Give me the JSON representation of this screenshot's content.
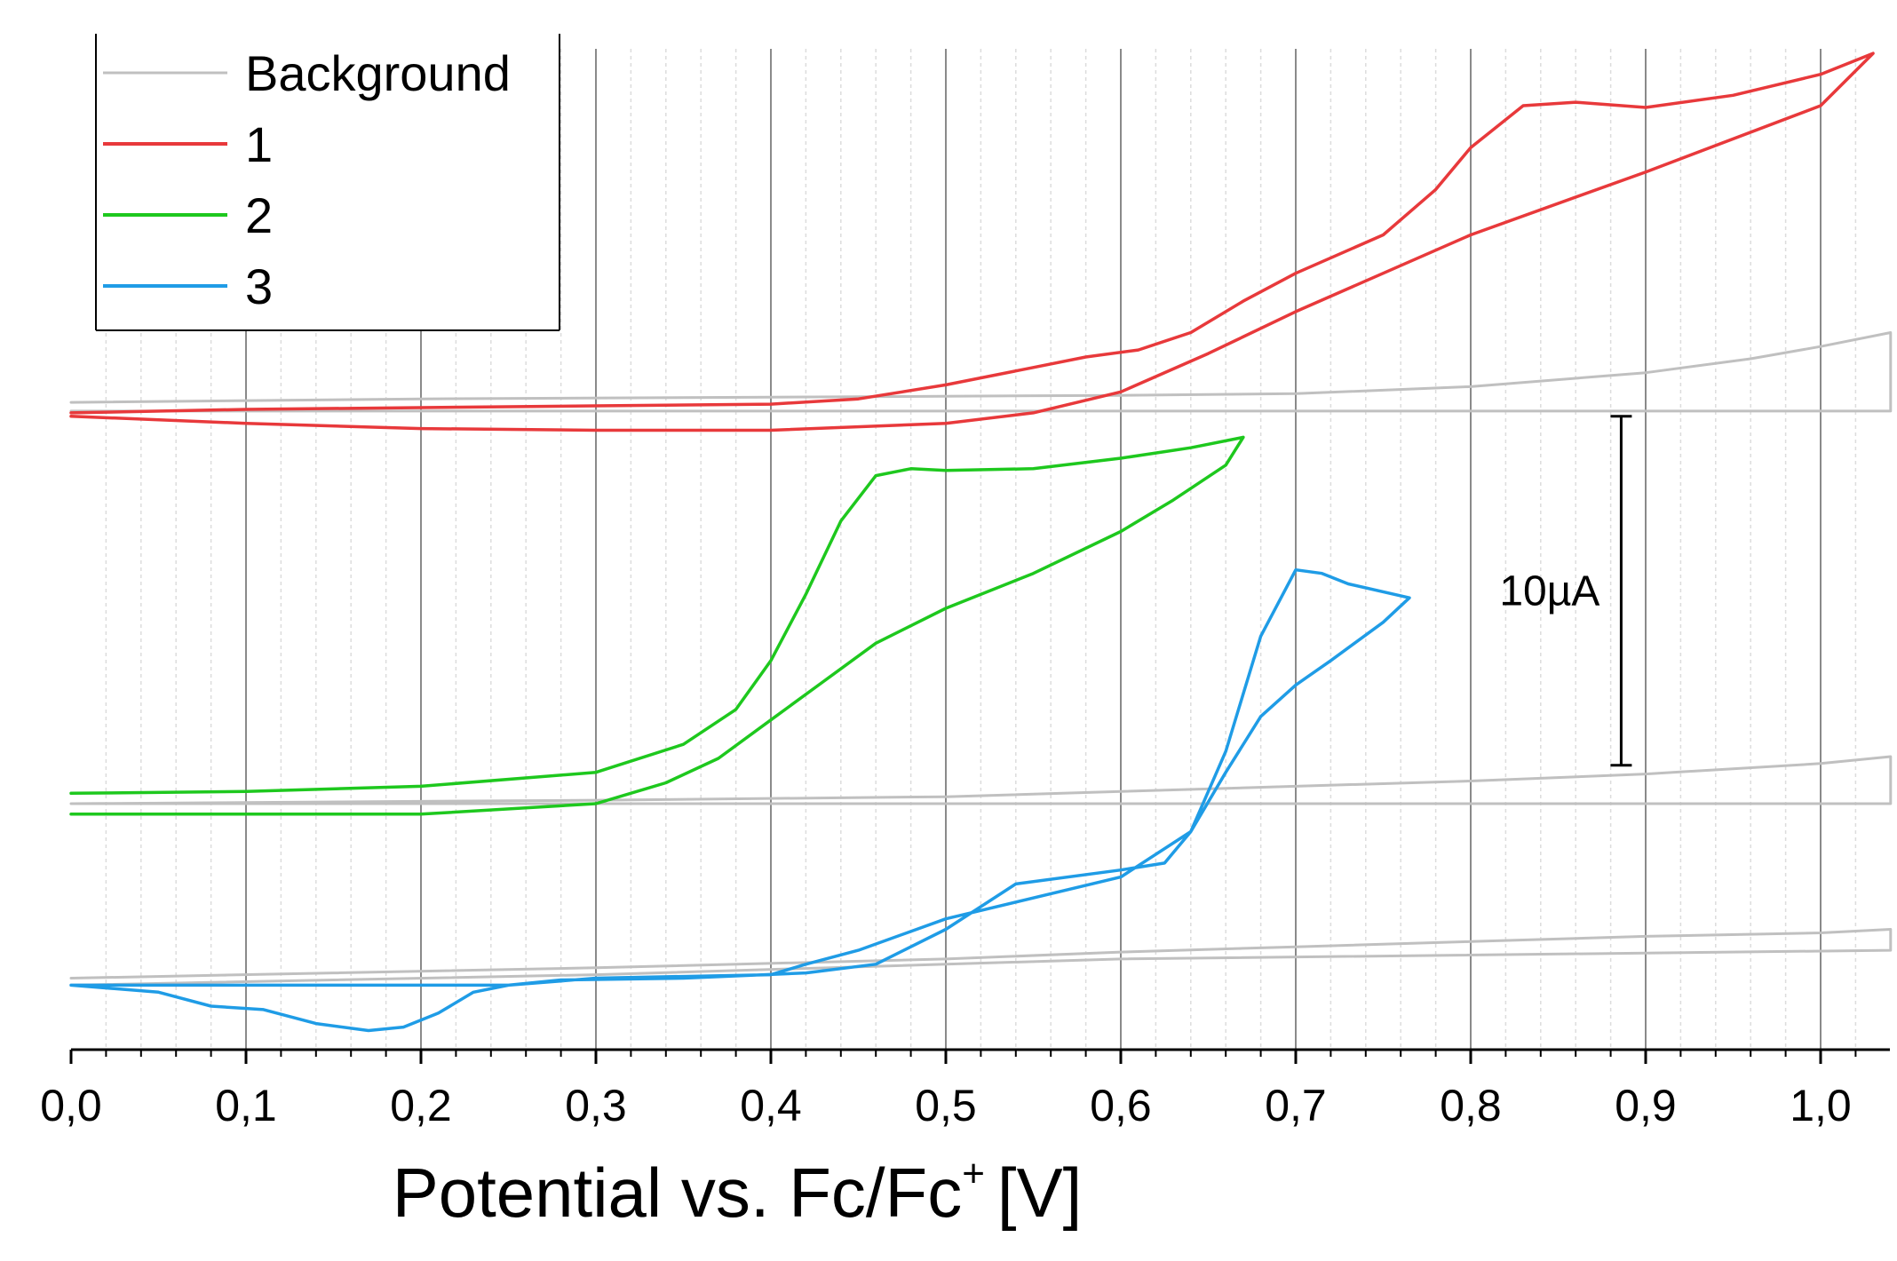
{
  "chart_data": {
    "type": "line",
    "title": "",
    "xlabel": "Potential vs. Fc/Fc",
    "xlabel_superscript": "+",
    "xlabel_unit": "[V]",
    "ylabel": "",
    "xlim": [
      0.0,
      1.04
    ],
    "ylim": [
      -2.0,
      29.0
    ],
    "x_ticks": [
      0.0,
      0.1,
      0.2,
      0.3,
      0.4,
      0.5,
      0.6,
      0.7,
      0.8,
      0.9,
      1.0
    ],
    "x_tick_labels": [
      "0,0",
      "0,1",
      "0,2",
      "0,3",
      "0,4",
      "0,5",
      "0,6",
      "0,7",
      "0,8",
      "0,9",
      "1,0"
    ],
    "grid": "vertical",
    "legend": {
      "position": "top-left",
      "entries": [
        {
          "label": "Background",
          "color": "#c0c0c0"
        },
        {
          "label": "1",
          "color": "#e8393b"
        },
        {
          "label": "2",
          "color": "#1ec81e"
        },
        {
          "label": "3",
          "color": "#1f9ce6"
        }
      ]
    },
    "scale_bar": {
      "label": "10µA",
      "value": 10,
      "x": 0.886,
      "y_from": 8.3,
      "y_to": 18.3
    },
    "series": [
      {
        "name": "Background",
        "role": "1",
        "color": "#c0c0c0",
        "x": [
          0.0,
          0.2,
          0.4,
          0.6,
          0.7,
          0.8,
          0.9,
          0.96,
          1.0,
          1.04,
          1.04,
          0.8,
          0.6,
          0.3,
          0.0
        ],
        "y": [
          18.7,
          18.8,
          18.85,
          18.9,
          18.95,
          19.15,
          19.55,
          19.95,
          20.3,
          20.7,
          18.45,
          18.45,
          18.45,
          18.45,
          18.45
        ]
      },
      {
        "name": "Background",
        "role": "2",
        "color": "#c0c0c0",
        "x": [
          0.0,
          0.3,
          0.5,
          0.6,
          0.7,
          0.8,
          0.9,
          1.0,
          1.04,
          1.04,
          0.6,
          0.3,
          0.0
        ],
        "y": [
          7.2,
          7.3,
          7.4,
          7.55,
          7.7,
          7.85,
          8.05,
          8.35,
          8.55,
          7.2,
          7.2,
          7.2,
          7.2
        ]
      },
      {
        "name": "Background",
        "role": "3",
        "color": "#c0c0c0",
        "x": [
          0.0,
          0.3,
          0.5,
          0.6,
          0.7,
          0.8,
          0.9,
          1.0,
          1.04,
          1.04,
          0.6,
          0.3,
          0.0
        ],
        "y": [
          2.2,
          2.5,
          2.75,
          2.95,
          3.1,
          3.25,
          3.4,
          3.5,
          3.6,
          3.0,
          2.75,
          2.3,
          2.0
        ]
      },
      {
        "name": "1",
        "color": "#e8393b",
        "x": [
          0.0,
          0.1,
          0.2,
          0.3,
          0.4,
          0.45,
          0.5,
          0.55,
          0.58,
          0.61,
          0.64,
          0.67,
          0.7,
          0.75,
          0.78,
          0.8,
          0.83,
          0.86,
          0.9,
          0.95,
          1.0,
          1.03,
          1.02,
          1.0,
          0.9,
          0.8,
          0.7,
          0.65,
          0.6,
          0.55,
          0.5,
          0.4,
          0.3,
          0.2,
          0.1,
          0.0
        ],
        "y": [
          18.4,
          18.5,
          18.55,
          18.6,
          18.65,
          18.8,
          19.2,
          19.7,
          20.0,
          20.2,
          20.7,
          21.6,
          22.4,
          23.5,
          24.8,
          26.0,
          27.2,
          27.3,
          27.15,
          27.5,
          28.1,
          28.7,
          28.2,
          27.2,
          25.3,
          23.5,
          21.3,
          20.1,
          19.0,
          18.4,
          18.1,
          17.9,
          17.9,
          17.95,
          18.1,
          18.3
        ]
      },
      {
        "name": "2",
        "color": "#1ec81e",
        "x": [
          0.0,
          0.1,
          0.2,
          0.3,
          0.35,
          0.38,
          0.4,
          0.42,
          0.44,
          0.46,
          0.48,
          0.5,
          0.55,
          0.6,
          0.64,
          0.67,
          0.66,
          0.63,
          0.6,
          0.55,
          0.5,
          0.46,
          0.43,
          0.4,
          0.37,
          0.34,
          0.3,
          0.2,
          0.1,
          0.0
        ],
        "y": [
          7.5,
          7.55,
          7.7,
          8.1,
          8.9,
          9.9,
          11.3,
          13.2,
          15.3,
          16.6,
          16.8,
          16.75,
          16.8,
          17.1,
          17.4,
          17.7,
          16.9,
          15.9,
          15.0,
          13.8,
          12.8,
          11.8,
          10.7,
          9.6,
          8.5,
          7.8,
          7.2,
          6.9,
          6.9,
          6.9
        ]
      },
      {
        "name": "3",
        "color": "#1f9ce6",
        "x": [
          0.0,
          0.05,
          0.08,
          0.11,
          0.14,
          0.17,
          0.19,
          0.21,
          0.23,
          0.25,
          0.28,
          0.35,
          0.42,
          0.46,
          0.5,
          0.54,
          0.6,
          0.625,
          0.64,
          0.66,
          0.68,
          0.7,
          0.715,
          0.73,
          0.765,
          0.75,
          0.72,
          0.7,
          0.68,
          0.66,
          0.64,
          0.6,
          0.5,
          0.45,
          0.42,
          0.4,
          0.3,
          0.25,
          0.2,
          0.15,
          0.1,
          0.0
        ],
        "y": [
          2.0,
          1.8,
          1.4,
          1.3,
          0.9,
          0.7,
          0.8,
          1.2,
          1.8,
          2.0,
          2.15,
          2.2,
          2.35,
          2.6,
          3.6,
          4.9,
          5.3,
          5.5,
          6.4,
          8.7,
          12.0,
          13.9,
          13.8,
          13.5,
          13.1,
          12.4,
          11.3,
          10.6,
          9.7,
          8.1,
          6.4,
          5.1,
          3.9,
          3.0,
          2.6,
          2.3,
          2.2,
          2.0,
          2.0,
          2.0,
          2.0,
          2.0
        ]
      }
    ]
  }
}
